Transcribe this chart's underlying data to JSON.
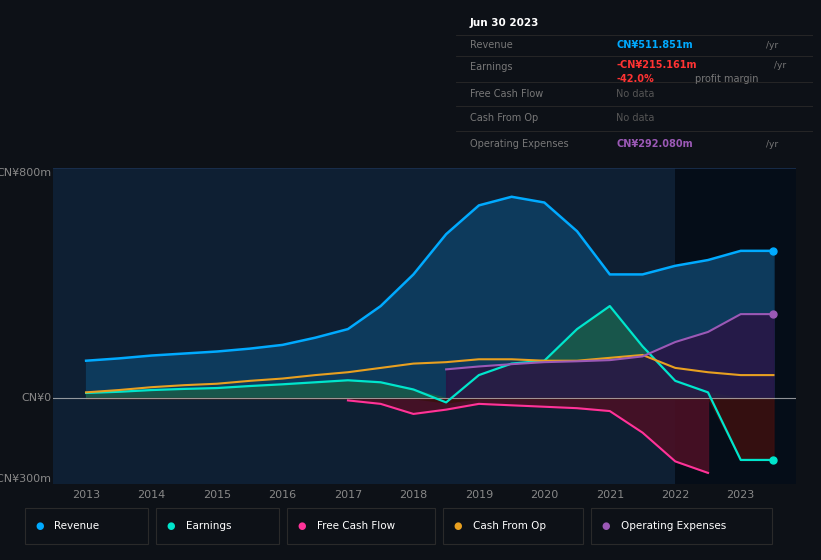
{
  "bg_color": "#0d1117",
  "plot_bg": "#0e1f33",
  "ylim": [
    -300,
    800
  ],
  "xlim": [
    2012.5,
    2023.85
  ],
  "xticks": [
    2013,
    2014,
    2015,
    2016,
    2017,
    2018,
    2019,
    2020,
    2021,
    2022,
    2023
  ],
  "years": [
    2013,
    2013.5,
    2014,
    2014.5,
    2015,
    2015.5,
    2016,
    2016.5,
    2017,
    2017.5,
    2018,
    2018.5,
    2019,
    2019.5,
    2020,
    2020.5,
    2021,
    2021.5,
    2022,
    2022.5,
    2023,
    2023.5
  ],
  "revenue": [
    130,
    138,
    148,
    155,
    162,
    172,
    185,
    210,
    240,
    320,
    430,
    570,
    670,
    700,
    680,
    580,
    430,
    430,
    460,
    480,
    512,
    512
  ],
  "earnings": [
    18,
    22,
    28,
    32,
    35,
    42,
    48,
    55,
    62,
    55,
    30,
    -15,
    80,
    120,
    130,
    240,
    320,
    180,
    60,
    20,
    -215,
    -215
  ],
  "fcf": [
    null,
    null,
    null,
    null,
    null,
    null,
    null,
    null,
    -8,
    -20,
    -55,
    -40,
    -20,
    -25,
    -30,
    -35,
    -45,
    -120,
    -220,
    -260,
    null,
    null
  ],
  "cashop": [
    20,
    28,
    38,
    45,
    50,
    60,
    68,
    80,
    90,
    105,
    120,
    125,
    135,
    135,
    130,
    130,
    140,
    150,
    105,
    90,
    80,
    80
  ],
  "opex": [
    null,
    null,
    null,
    null,
    null,
    null,
    null,
    null,
    null,
    null,
    null,
    100,
    110,
    118,
    125,
    128,
    132,
    145,
    195,
    230,
    292,
    292
  ],
  "revenue_color": "#00aaff",
  "revenue_fill": "#0d3a5c",
  "earnings_color": "#00e5cc",
  "earnings_fill_pos": "#1a5a4a",
  "earnings_fill_neg": "#3a1010",
  "fcf_color": "#ff3399",
  "fcf_fill": "#4a1025",
  "cashop_color": "#e8a020",
  "opex_color": "#9b59b6",
  "opex_fill": "#2a1545",
  "zero_line_color": "#cccccc",
  "text_color": "#888888",
  "dark_band_start": 2022.0,
  "dark_band_color": "#050d18",
  "tooltip_bg": "#000000",
  "legend_bg": "#0d1117",
  "legend_border": "#2a2a2a"
}
